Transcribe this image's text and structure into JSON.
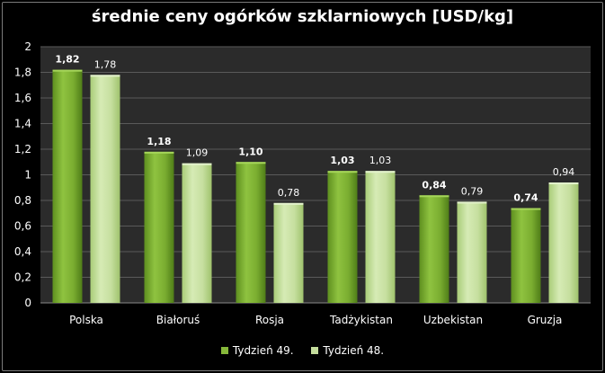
{
  "chart_data": {
    "type": "bar",
    "title": "średnie ceny ogórków szklarniowych [USD/kg]",
    "categories": [
      "Polska",
      "Białoruś",
      "Rosja",
      "Tadżykistan",
      "Uzbekistan",
      "Gruzja"
    ],
    "series": [
      {
        "name": "Tydzień 49.",
        "values": [
          1.82,
          1.18,
          1.1,
          1.03,
          0.84,
          0.74
        ],
        "labels": [
          "1,82",
          "1,18",
          "1,10",
          "1,03",
          "0,84",
          "0,74"
        ],
        "color": "#86b83a"
      },
      {
        "name": "Tydzień 48.",
        "values": [
          1.78,
          1.09,
          0.78,
          1.03,
          0.79,
          0.94
        ],
        "labels": [
          "1,78",
          "1,09",
          "0,78",
          "1,03",
          "0,79",
          "0,94"
        ],
        "color": "#c4dd9c"
      }
    ],
    "ylim": [
      0,
      2
    ],
    "yticks": [
      0,
      0.2,
      0.4,
      0.6,
      0.8,
      1,
      1.2,
      1.4,
      1.6,
      1.8,
      2
    ],
    "ytick_labels": [
      "0",
      "0,2",
      "0,4",
      "0,6",
      "0,8",
      "1",
      "1,2",
      "1,4",
      "1,6",
      "1,8",
      "2"
    ],
    "grid": true,
    "legend": "bottom",
    "colors": {
      "background": "#000000",
      "plot_area": "#2b2b2b",
      "gridline": "#5a5a5a",
      "text": "#ffffff"
    }
  }
}
